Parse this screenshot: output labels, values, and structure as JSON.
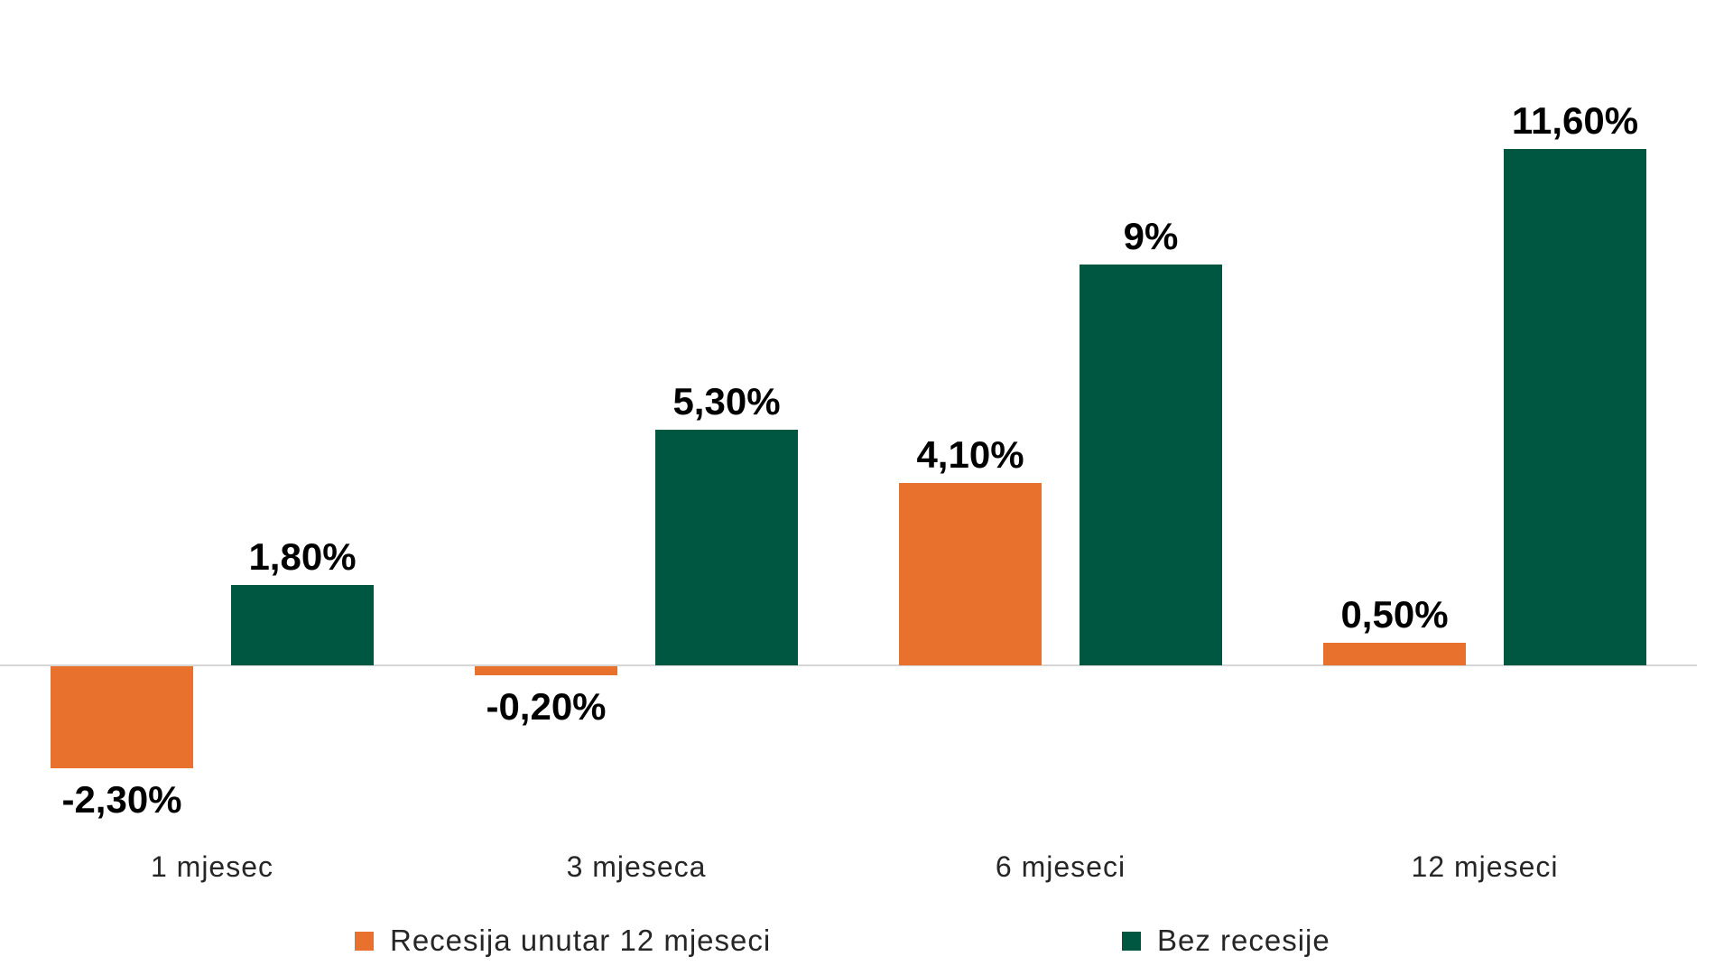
{
  "chart_data": {
    "type": "bar",
    "categories": [
      "1 mjesec",
      "3 mjeseca",
      "6 mjeseci",
      "12 mjeseci"
    ],
    "series": [
      {
        "name": "Recesija unutar 12 mjeseci",
        "color": "#E8722D",
        "values": [
          -2.3,
          -0.2,
          4.1,
          0.5
        ],
        "labels": [
          "-2,30%",
          "-0,20%",
          "4,10%",
          "0,50%"
        ]
      },
      {
        "name": "Bez recesije",
        "color": "#005741",
        "values": [
          1.8,
          5.3,
          9,
          11.6
        ],
        "labels": [
          "1,80%",
          "5,30%",
          "9%",
          "11,60%"
        ]
      }
    ],
    "value_suffix": "%",
    "decimal_separator": ",",
    "axis": {
      "baseline_value": 0,
      "y_axis_visible": false,
      "gridlines": false,
      "x_axis_line_color": "#D6D6D6"
    },
    "legend": {
      "position": "bottom"
    },
    "background_color": "#FFFFFF"
  }
}
